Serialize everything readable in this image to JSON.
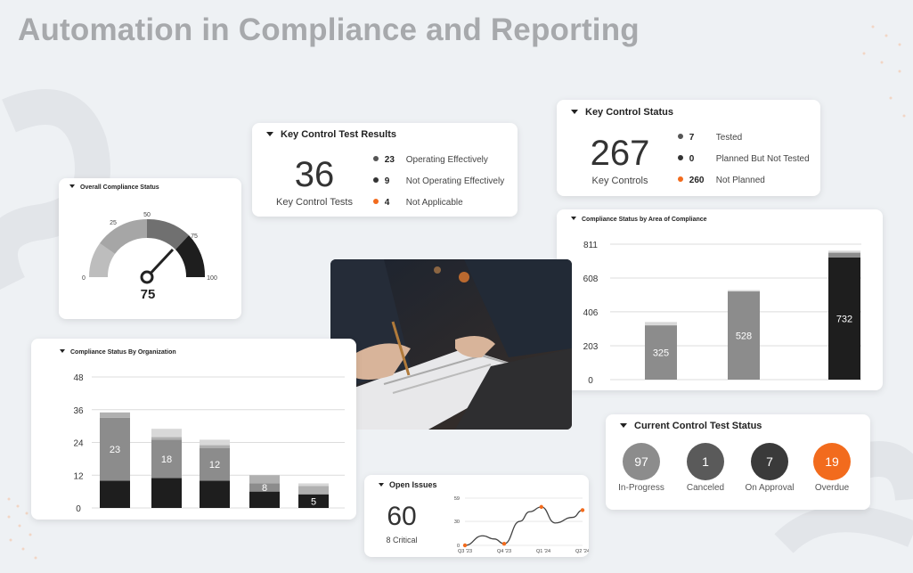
{
  "page": {
    "title": "Automation in Compliance and Reporting"
  },
  "key_control_test_results": {
    "title": "Key Control Test Results",
    "total": "36",
    "total_label": "Key Control Tests",
    "items": [
      {
        "count": "23",
        "label": "Operating Effectively",
        "color": "#555555"
      },
      {
        "count": "9",
        "label": "Not Operating Effectively",
        "color": "#333333"
      },
      {
        "count": "4",
        "label": "Not Applicable",
        "color": "#f26b1d"
      }
    ]
  },
  "key_control_status": {
    "title": "Key Control Status",
    "total": "267",
    "total_label": "Key Controls",
    "items": [
      {
        "count": "7",
        "label": "Tested",
        "color": "#555555"
      },
      {
        "count": "0",
        "label": "Planned But Not Tested",
        "color": "#333333"
      },
      {
        "count": "260",
        "label": "Not Planned",
        "color": "#f26b1d"
      }
    ]
  },
  "overall_compliance": {
    "title": "Overall Compliance Status",
    "value": "75",
    "ticks": [
      "0",
      "25",
      "50",
      "75",
      "100"
    ],
    "needle_value": 75
  },
  "area_chart": {
    "title": "Compliance Status by Area of Compliance"
  },
  "org_chart": {
    "title": "Compliance Status By Organization"
  },
  "open_issues": {
    "title": "Open Issues",
    "total": "60",
    "sub": "8 Critical"
  },
  "current_test_status": {
    "title": "Current Control Test Status",
    "items": [
      {
        "value": "97",
        "label": "In-Progress",
        "color": "#8c8c8c"
      },
      {
        "value": "1",
        "label": "Canceled",
        "color": "#5a5a5a"
      },
      {
        "value": "7",
        "label": "On Approval",
        "color": "#3a3a3a"
      },
      {
        "value": "19",
        "label": "Overdue",
        "color": "#f26b1d"
      }
    ]
  },
  "chart_data": [
    {
      "type": "bar",
      "title": "Compliance Status by Area of Compliance",
      "ylim": [
        0,
        811
      ],
      "yticks": [
        "0",
        "203",
        "406",
        "608",
        "811"
      ],
      "categories": [
        "",
        "",
        ""
      ],
      "series": [
        {
          "values": [
            325,
            528,
            732
          ]
        }
      ],
      "stack_caps": [
        20,
        8,
        40
      ],
      "bar_colors": [
        "#8c8c8c",
        "#8c8c8c",
        "#1e1e1e"
      ],
      "grid": true
    },
    {
      "type": "bar",
      "title": "Compliance Status By Organization",
      "ylim": [
        0,
        48
      ],
      "yticks": [
        "0",
        "12",
        "24",
        "36",
        "48"
      ],
      "categories": [
        "",
        "",
        "",
        "",
        ""
      ],
      "labels": [
        "23",
        "18",
        "12",
        "8",
        "5"
      ],
      "stacks": [
        [
          10,
          23,
          2,
          0
        ],
        [
          11,
          14,
          1,
          3
        ],
        [
          10,
          12,
          1,
          2
        ],
        [
          6,
          3,
          3,
          0
        ],
        [
          5,
          0,
          3,
          1
        ]
      ],
      "stack_colors": [
        "#1e1e1e",
        "#8c8c8c",
        "#b0b0b0",
        "#d8d8d8"
      ],
      "grid": true
    },
    {
      "type": "line",
      "title": "Open Issues",
      "ylim": [
        0,
        59
      ],
      "yticks": [
        "0",
        "30",
        "59"
      ],
      "x_labels": [
        "Q3 '23",
        "Q4 '23",
        "Q1 '24",
        "Q2 '24"
      ],
      "points": [
        [
          0,
          0
        ],
        [
          0.9,
          12
        ],
        [
          1.5,
          8
        ],
        [
          2,
          2
        ],
        [
          2.8,
          30
        ],
        [
          3.3,
          42
        ],
        [
          3.9,
          48
        ],
        [
          4.6,
          28
        ],
        [
          5.5,
          35
        ],
        [
          6,
          44
        ]
      ],
      "markers": [
        0,
        3,
        6,
        9
      ],
      "line_color": "#444444",
      "marker_color": "#f26b1d"
    }
  ]
}
